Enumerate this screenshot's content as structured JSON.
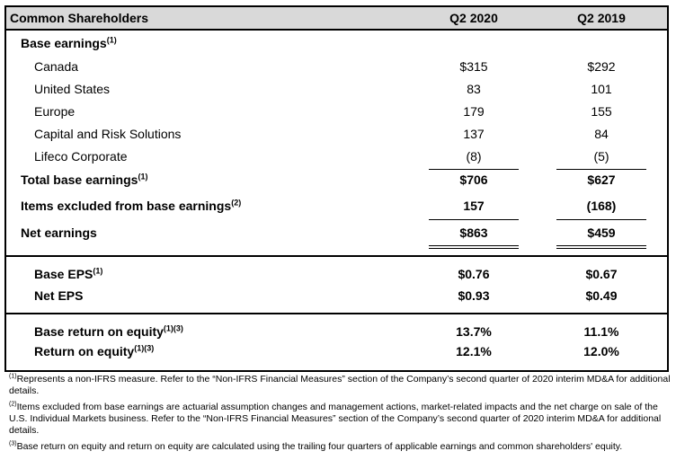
{
  "header": {
    "title": "Common Shareholders",
    "col1": "Q2 2020",
    "col2": "Q2 2019"
  },
  "section1": {
    "heading": "Base earnings",
    "heading_sup": "(1)",
    "rows": [
      {
        "label": "Canada",
        "q2_2020": "$315",
        "q2_2019": "$292"
      },
      {
        "label": "United States",
        "q2_2020": "83",
        "q2_2019": "101"
      },
      {
        "label": "Europe",
        "q2_2020": "179",
        "q2_2019": "155"
      },
      {
        "label": "Capital and Risk Solutions",
        "q2_2020": "137",
        "q2_2019": "84"
      },
      {
        "label": "Lifeco Corporate",
        "q2_2020": "(8)",
        "q2_2019": "(5)"
      }
    ],
    "total": {
      "label": "Total base earnings",
      "sup": "(1)",
      "q2_2020": "$706",
      "q2_2019": "$627"
    },
    "excluded": {
      "label": "Items excluded from base earnings",
      "sup": "(2)",
      "q2_2020": "157",
      "q2_2019": "(168)"
    },
    "net": {
      "label": "Net earnings",
      "q2_2020": "$863",
      "q2_2019": "$459"
    }
  },
  "section2": {
    "base_eps": {
      "label": "Base EPS",
      "sup": "(1)",
      "q2_2020": "$0.76",
      "q2_2019": "$0.67"
    },
    "net_eps": {
      "label": "Net EPS",
      "q2_2020": "$0.93",
      "q2_2019": "$0.49"
    }
  },
  "section3": {
    "base_roe": {
      "label": "Base return on equity",
      "sup": "(1)(3)",
      "q2_2020": "13.7%",
      "q2_2019": "11.1%"
    },
    "roe": {
      "label": "Return on equity",
      "sup": "(1)(3)",
      "q2_2020": "12.1%",
      "q2_2019": "12.0%"
    }
  },
  "footnotes": [
    {
      "mark": "(1)",
      "text": "Represents a non-IFRS measure. Refer to the “Non-IFRS Financial Measures” section of the Company’s second quarter of 2020 interim MD&A for additional details."
    },
    {
      "mark": "(2)",
      "text": "Items excluded from base earnings are actuarial assumption changes and management actions, market-related impacts and the net charge on sale of the U.S. Individual Markets business. Refer to the “Non-IFRS Financial Measures” section of the Company’s second quarter of 2020 interim MD&A for additional details."
    },
    {
      "mark": "(3)",
      "text": "Base return on equity and return on equity are calculated using the trailing four quarters of applicable earnings and common shareholders' equity."
    }
  ]
}
